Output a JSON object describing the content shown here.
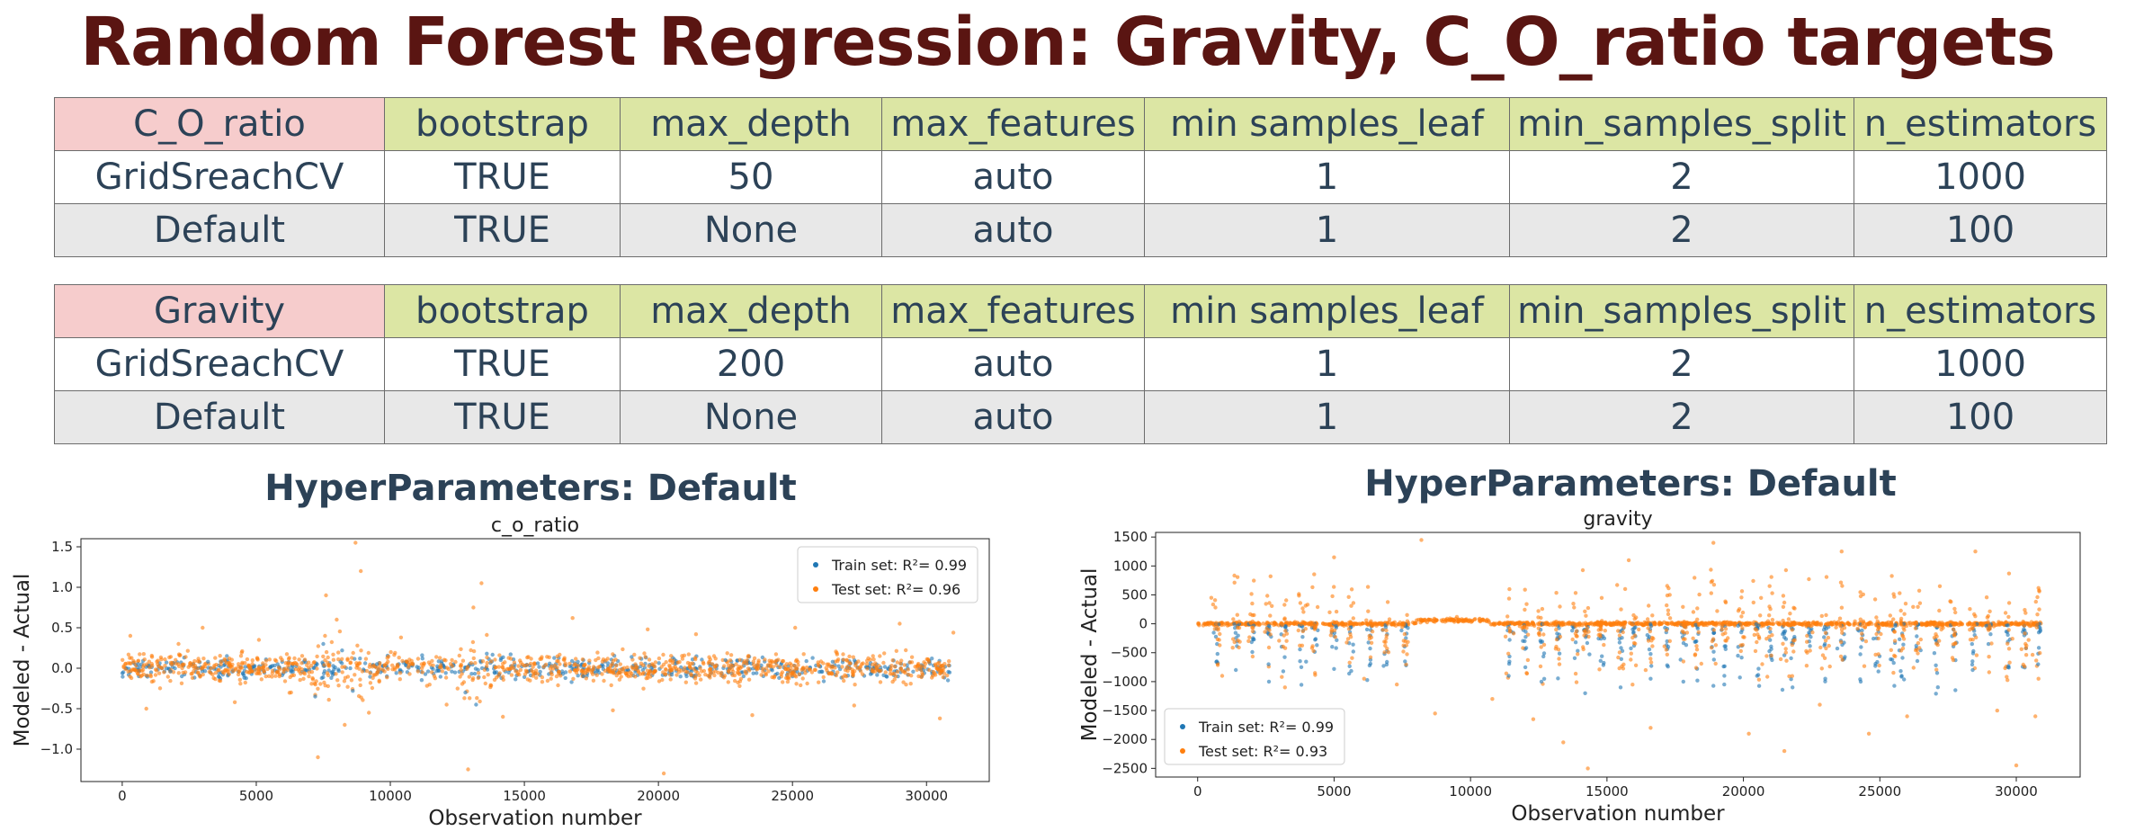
{
  "title": "Random Forest Regression: Gravity, C_O_ratio targets",
  "tables": [
    {
      "header": [
        "C_O_ratio",
        "bootstrap",
        "max_depth",
        "max_features",
        "min samples_leaf",
        "min_samples_split",
        "n_estimators"
      ],
      "rows": [
        [
          "GridSreachCV",
          "TRUE",
          "50",
          "auto",
          "1",
          "2",
          "1000"
        ],
        [
          "Default",
          "TRUE",
          "None",
          "auto",
          "1",
          "2",
          "100"
        ]
      ]
    },
    {
      "header": [
        "Gravity",
        "bootstrap",
        "max_depth",
        "max_features",
        "min samples_leaf",
        "min_samples_split",
        "n_estimators"
      ],
      "rows": [
        [
          "GridSreachCV",
          "TRUE",
          "200",
          "auto",
          "1",
          "2",
          "1000"
        ],
        [
          "Default",
          "TRUE",
          "None",
          "auto",
          "1",
          "2",
          "100"
        ]
      ]
    }
  ],
  "panels": [
    {
      "heading": "HyperParameters: Default"
    },
    {
      "heading": "HyperParameters: Default"
    }
  ],
  "colors": {
    "train": "#1f77b4",
    "test": "#ff7f0e",
    "title": "#5a1512",
    "table_text": "#2c4257",
    "header_bg": "#dce6a4",
    "target_bg": "#f6cccc"
  },
  "chart_data": [
    {
      "type": "scatter",
      "title": "c_o_ratio",
      "xlabel": "Observation number",
      "ylabel": "Modeled - Actual",
      "xlim": [
        -1540,
        32340
      ],
      "ylim": [
        -1.4,
        1.6
      ],
      "xticks": [
        0,
        5000,
        10000,
        15000,
        20000,
        25000,
        30000
      ],
      "yticks": [
        -1.0,
        -0.5,
        0.0,
        0.5,
        1.0,
        1.5
      ],
      "ytick_labels": [
        "−1.0",
        "−0.5",
        "0.0",
        "0.5",
        "1.0",
        "1.5"
      ],
      "legend_position": "upper right",
      "series": [
        {
          "name": "Train set: R²= 0.99",
          "color": "#1f77b4",
          "points": [
            [
              600,
              0.05
            ],
            [
              1800,
              -0.04
            ],
            [
              3200,
              0.08
            ],
            [
              4500,
              -0.06
            ],
            [
              5600,
              0.03
            ],
            [
              7200,
              -0.35
            ],
            [
              7500,
              0.3
            ],
            [
              7800,
              -0.12
            ],
            [
              8200,
              0.22
            ],
            [
              8600,
              -0.28
            ],
            [
              9500,
              0.05
            ],
            [
              11200,
              0.12
            ],
            [
              12800,
              -0.3
            ],
            [
              13200,
              -0.45
            ],
            [
              13600,
              0.18
            ],
            [
              15500,
              0.06
            ],
            [
              17200,
              -0.1
            ],
            [
              19000,
              0.14
            ],
            [
              20500,
              -0.08
            ],
            [
              22500,
              0.1
            ],
            [
              24500,
              -0.12
            ],
            [
              26500,
              0.08
            ],
            [
              28500,
              -0.1
            ],
            [
              30200,
              0.12
            ],
            [
              30800,
              -0.15
            ]
          ]
        },
        {
          "name": "Test set: R²= 0.96",
          "color": "#ff7f0e",
          "points": [
            [
              300,
              0.4
            ],
            [
              900,
              -0.5
            ],
            [
              2100,
              0.3
            ],
            [
              3000,
              0.5
            ],
            [
              4200,
              -0.42
            ],
            [
              5100,
              0.35
            ],
            [
              6300,
              -0.3
            ],
            [
              7300,
              -1.1
            ],
            [
              7600,
              0.9
            ],
            [
              8000,
              0.6
            ],
            [
              8300,
              -0.7
            ],
            [
              8700,
              1.55
            ],
            [
              8900,
              1.2
            ],
            [
              9200,
              -0.55
            ],
            [
              10400,
              0.38
            ],
            [
              12100,
              -0.45
            ],
            [
              12900,
              -1.25
            ],
            [
              13100,
              0.75
            ],
            [
              13400,
              1.05
            ],
            [
              14200,
              -0.6
            ],
            [
              16800,
              0.62
            ],
            [
              18300,
              -0.52
            ],
            [
              19600,
              0.48
            ],
            [
              20200,
              -1.3
            ],
            [
              21400,
              0.42
            ],
            [
              23500,
              -0.58
            ],
            [
              25100,
              0.5
            ],
            [
              27300,
              -0.46
            ],
            [
              29000,
              0.55
            ],
            [
              30500,
              -0.62
            ],
            [
              31000,
              0.44
            ]
          ]
        }
      ]
    },
    {
      "type": "scatter",
      "title": "gravity",
      "xlabel": "Observation number",
      "ylabel": "Modeled - Actual",
      "xlim": [
        -1540,
        32340
      ],
      "ylim": [
        -2650,
        1580
      ],
      "xticks": [
        0,
        5000,
        10000,
        15000,
        20000,
        25000,
        30000
      ],
      "yticks": [
        -2500,
        -2000,
        -1500,
        -1000,
        -500,
        0,
        500,
        1000,
        1500
      ],
      "ytick_labels": [
        "−2500",
        "−2000",
        "−1500",
        "−1000",
        "−500",
        "0",
        "500",
        "1000",
        "1500"
      ],
      "legend_position": "lower left",
      "series": [
        {
          "name": "Train set: R²= 0.99",
          "color": "#1f77b4",
          "points": [
            [
              700,
              -650
            ],
            [
              1400,
              -800
            ],
            [
              2600,
              -700
            ],
            [
              3800,
              -750
            ],
            [
              5000,
              -780
            ],
            [
              6300,
              -720
            ],
            [
              7600,
              -650
            ],
            [
              11400,
              -900
            ],
            [
              12600,
              -1000
            ],
            [
              14200,
              -1200
            ],
            [
              15500,
              -1100
            ],
            [
              16600,
              -950
            ],
            [
              17800,
              -1000
            ],
            [
              19300,
              -1050
            ],
            [
              20500,
              -900
            ],
            [
              21800,
              -1100
            ],
            [
              23000,
              -950
            ],
            [
              24300,
              -1000
            ],
            [
              25800,
              -900
            ],
            [
              27100,
              -850
            ],
            [
              28400,
              -800
            ],
            [
              29700,
              -750
            ],
            [
              30800,
              -700
            ]
          ]
        },
        {
          "name": "Test set: R²= 0.93",
          "color": "#ff7f0e",
          "points": [
            [
              500,
              450
            ],
            [
              900,
              -900
            ],
            [
              2000,
              350
            ],
            [
              3200,
              -1100
            ],
            [
              4300,
              -850
            ],
            [
              5000,
              1150
            ],
            [
              6100,
              -950
            ],
            [
              7300,
              -1050
            ],
            [
              8200,
              1450
            ],
            [
              8700,
              -1550
            ],
            [
              9500,
              120
            ],
            [
              10800,
              -1300
            ],
            [
              12300,
              -1650
            ],
            [
              13400,
              -2050
            ],
            [
              14300,
              -2500
            ],
            [
              15800,
              1100
            ],
            [
              16600,
              -1800
            ],
            [
              17300,
              500
            ],
            [
              18900,
              1400
            ],
            [
              20200,
              -1900
            ],
            [
              21500,
              -2200
            ],
            [
              22800,
              -1400
            ],
            [
              23600,
              1250
            ],
            [
              24600,
              -1900
            ],
            [
              26000,
              -1600
            ],
            [
              27200,
              650
            ],
            [
              28500,
              1250
            ],
            [
              29300,
              -1500
            ],
            [
              30000,
              -2450
            ],
            [
              30700,
              -1600
            ]
          ]
        }
      ]
    }
  ]
}
